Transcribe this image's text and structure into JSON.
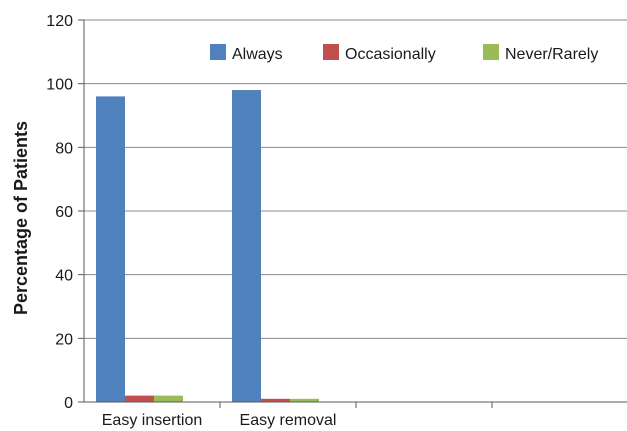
{
  "chart_data": {
    "type": "bar",
    "categories": [
      "Easy insertion",
      "Easy removal",
      "",
      ""
    ],
    "series": [
      {
        "name": "Always",
        "values": [
          96,
          98,
          0,
          0
        ],
        "color": "#4f81bd"
      },
      {
        "name": "Occasionally",
        "values": [
          2,
          1,
          0,
          0
        ],
        "color": "#c0504d"
      },
      {
        "name": "Never/Rarely",
        "values": [
          2,
          1,
          0,
          0
        ],
        "color": "#9bbb59"
      }
    ],
    "title": "",
    "xlabel": "",
    "ylabel": "Percentage of Patients",
    "ylim": [
      0,
      120
    ],
    "yticks": [
      "0",
      "20",
      "40",
      "60",
      "80",
      "100",
      "120"
    ],
    "grid": true,
    "legend_position": "top-right"
  }
}
